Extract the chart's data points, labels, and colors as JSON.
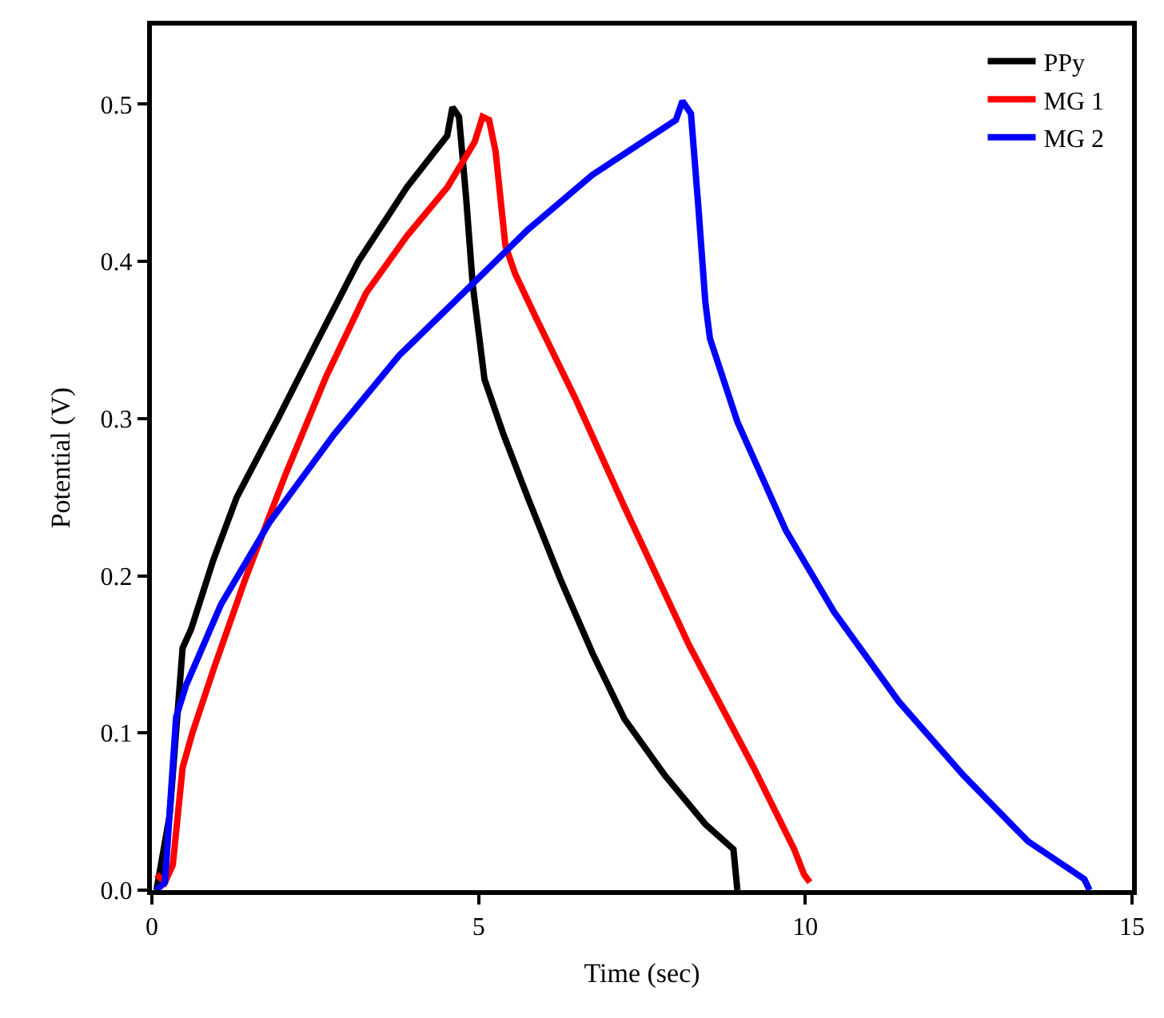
{
  "chart_data": {
    "type": "line",
    "xlabel": "Time (sec)",
    "ylabel": "Potential (V)",
    "xlim": [
      0,
      15
    ],
    "xticks": [
      0,
      5,
      10,
      15
    ],
    "ylim": [
      0,
      0.55
    ],
    "yticks": [
      {
        "value": 0,
        "label": "0.0"
      },
      0.1,
      0.2,
      0.3,
      0.4,
      0.5
    ],
    "legend": "top right",
    "marker": "none",
    "line_style": "solid",
    "series": [
      {
        "name": "PPy",
        "color": "#000000",
        "x": [
          0.07,
          0.27,
          0.47,
          0.6,
          0.94,
          1.3,
          1.93,
          2.54,
          3.16,
          3.9,
          4.52,
          4.6,
          4.7,
          4.81,
          4.91,
          5.09,
          5.38,
          5.75,
          6.25,
          6.74,
          7.23,
          7.85,
          8.47,
          8.9,
          8.96
        ],
        "values": [
          0.0,
          0.047,
          0.154,
          0.166,
          0.21,
          0.25,
          0.3,
          0.35,
          0.4,
          0.447,
          0.48,
          0.498,
          0.492,
          0.44,
          0.385,
          0.325,
          0.29,
          0.25,
          0.198,
          0.151,
          0.109,
          0.073,
          0.042,
          0.026,
          0.0
        ]
      },
      {
        "name": "MG 1",
        "color": "#ff0000",
        "x": [
          0.07,
          0.2,
          0.32,
          0.47,
          0.62,
          0.94,
          1.43,
          2.05,
          2.67,
          3.28,
          3.9,
          4.52,
          4.94,
          5.06,
          5.16,
          5.26,
          5.41,
          5.56,
          5.88,
          6.49,
          7.23,
          8.22,
          9.21,
          9.83,
          9.98,
          10.07
        ],
        "values": [
          0.01,
          0.005,
          0.016,
          0.078,
          0.1,
          0.14,
          0.198,
          0.265,
          0.327,
          0.38,
          0.416,
          0.447,
          0.476,
          0.492,
          0.49,
          0.47,
          0.41,
          0.392,
          0.364,
          0.312,
          0.244,
          0.156,
          0.078,
          0.026,
          0.01,
          0.005
        ]
      },
      {
        "name": "MG 2",
        "color": "#0000ff",
        "x": [
          0.07,
          0.2,
          0.37,
          0.52,
          1.06,
          1.8,
          2.79,
          3.78,
          4.77,
          5.75,
          6.74,
          8.02,
          8.12,
          8.25,
          8.37,
          8.47,
          8.54,
          8.96,
          9.7,
          10.44,
          11.43,
          12.42,
          13.41,
          14.27,
          14.35
        ],
        "values": [
          0.0,
          0.005,
          0.11,
          0.13,
          0.182,
          0.234,
          0.29,
          0.34,
          0.38,
          0.42,
          0.455,
          0.49,
          0.502,
          0.494,
          0.431,
          0.374,
          0.351,
          0.298,
          0.229,
          0.177,
          0.12,
          0.073,
          0.031,
          0.007,
          0.0
        ]
      }
    ]
  }
}
